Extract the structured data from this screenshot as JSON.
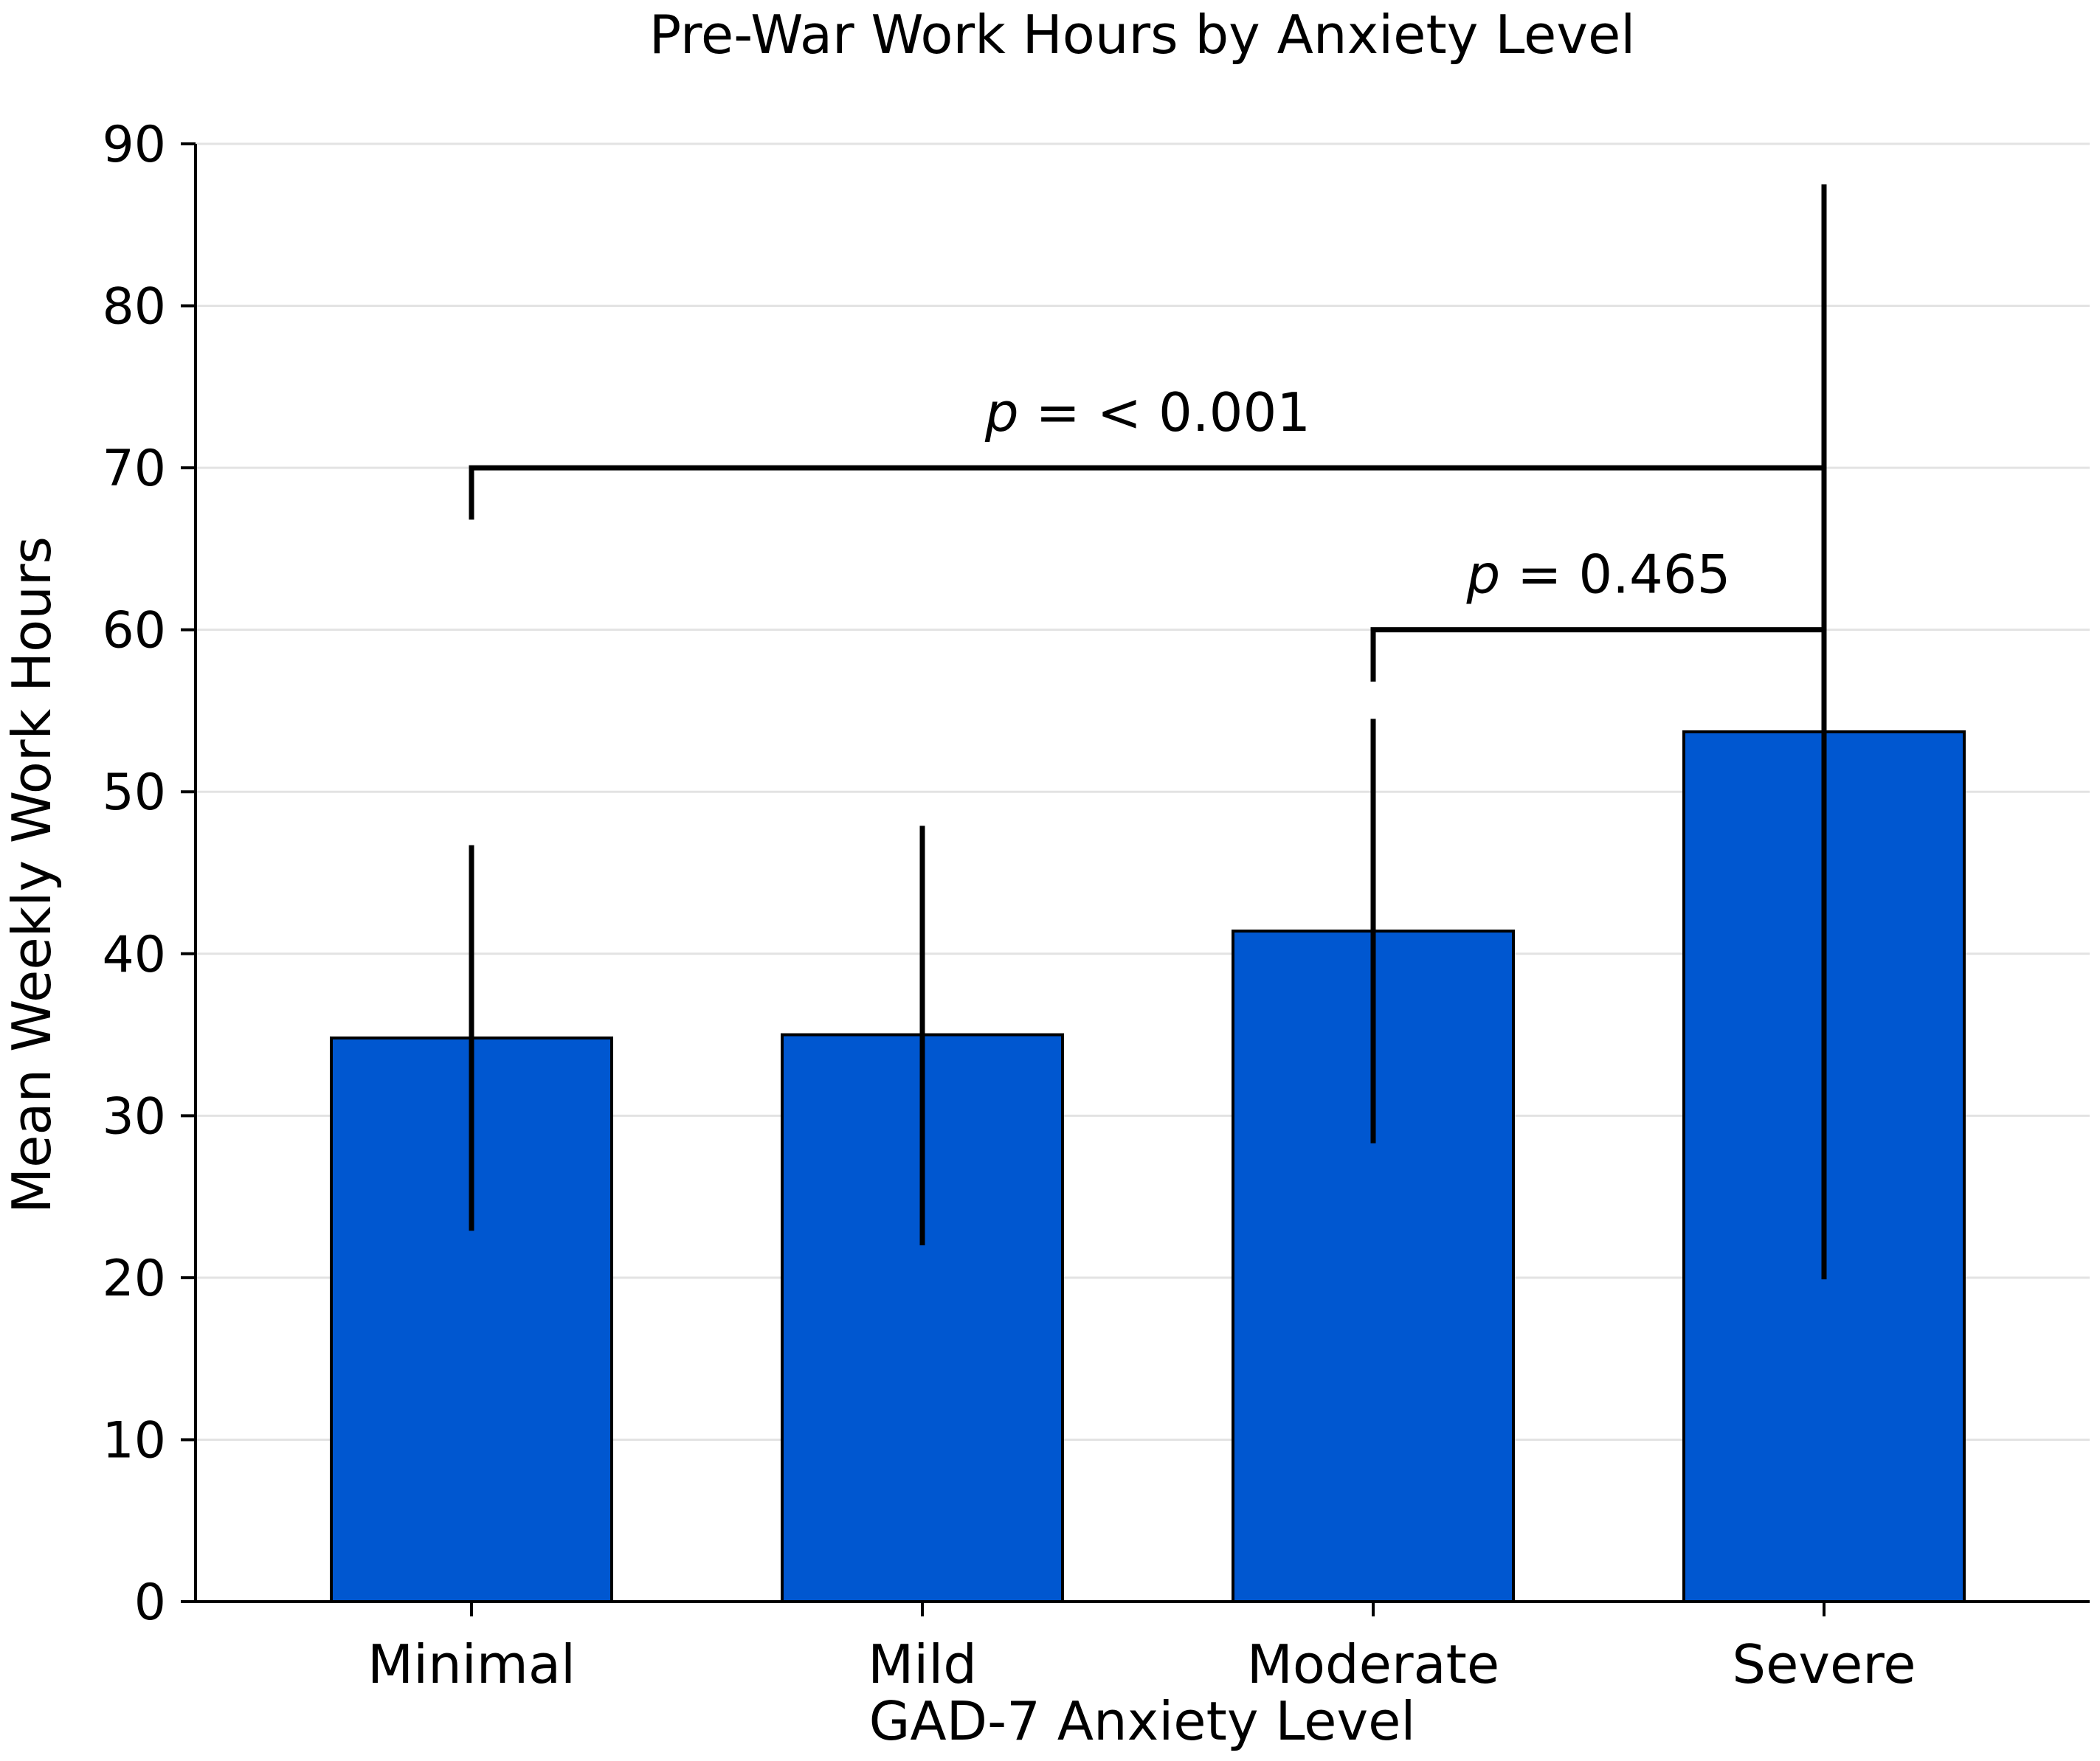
{
  "chart_data": {
    "type": "bar",
    "title": "Pre-War Work Hours by Anxiety Level",
    "xlabel": "GAD-7 Anxiety Level",
    "ylabel": "Mean Weekly Work Hours",
    "ylim": [
      0,
      90
    ],
    "yticks": [
      0,
      10,
      20,
      30,
      40,
      50,
      60,
      70,
      80,
      90
    ],
    "grid": true,
    "categories": [
      "Minimal",
      "Mild",
      "Moderate",
      "Severe"
    ],
    "values": [
      34.8,
      35.0,
      41.4,
      53.7
    ],
    "error_low": [
      22.9,
      22.0,
      28.3,
      19.9
    ],
    "error_high": [
      46.7,
      47.9,
      54.5,
      87.5
    ],
    "bar_color": "#0057d0",
    "annotations": [
      {
        "from": "Minimal",
        "to": "Severe",
        "bracket_y": 70,
        "left_drop_to": 66.8,
        "p_symbol": "p",
        "text": " = < 0.001"
      },
      {
        "from": "Moderate",
        "to": "Severe",
        "bracket_y": 60,
        "left_drop_to": 56.8,
        "p_symbol": "p",
        "text": " = 0.465"
      }
    ]
  }
}
